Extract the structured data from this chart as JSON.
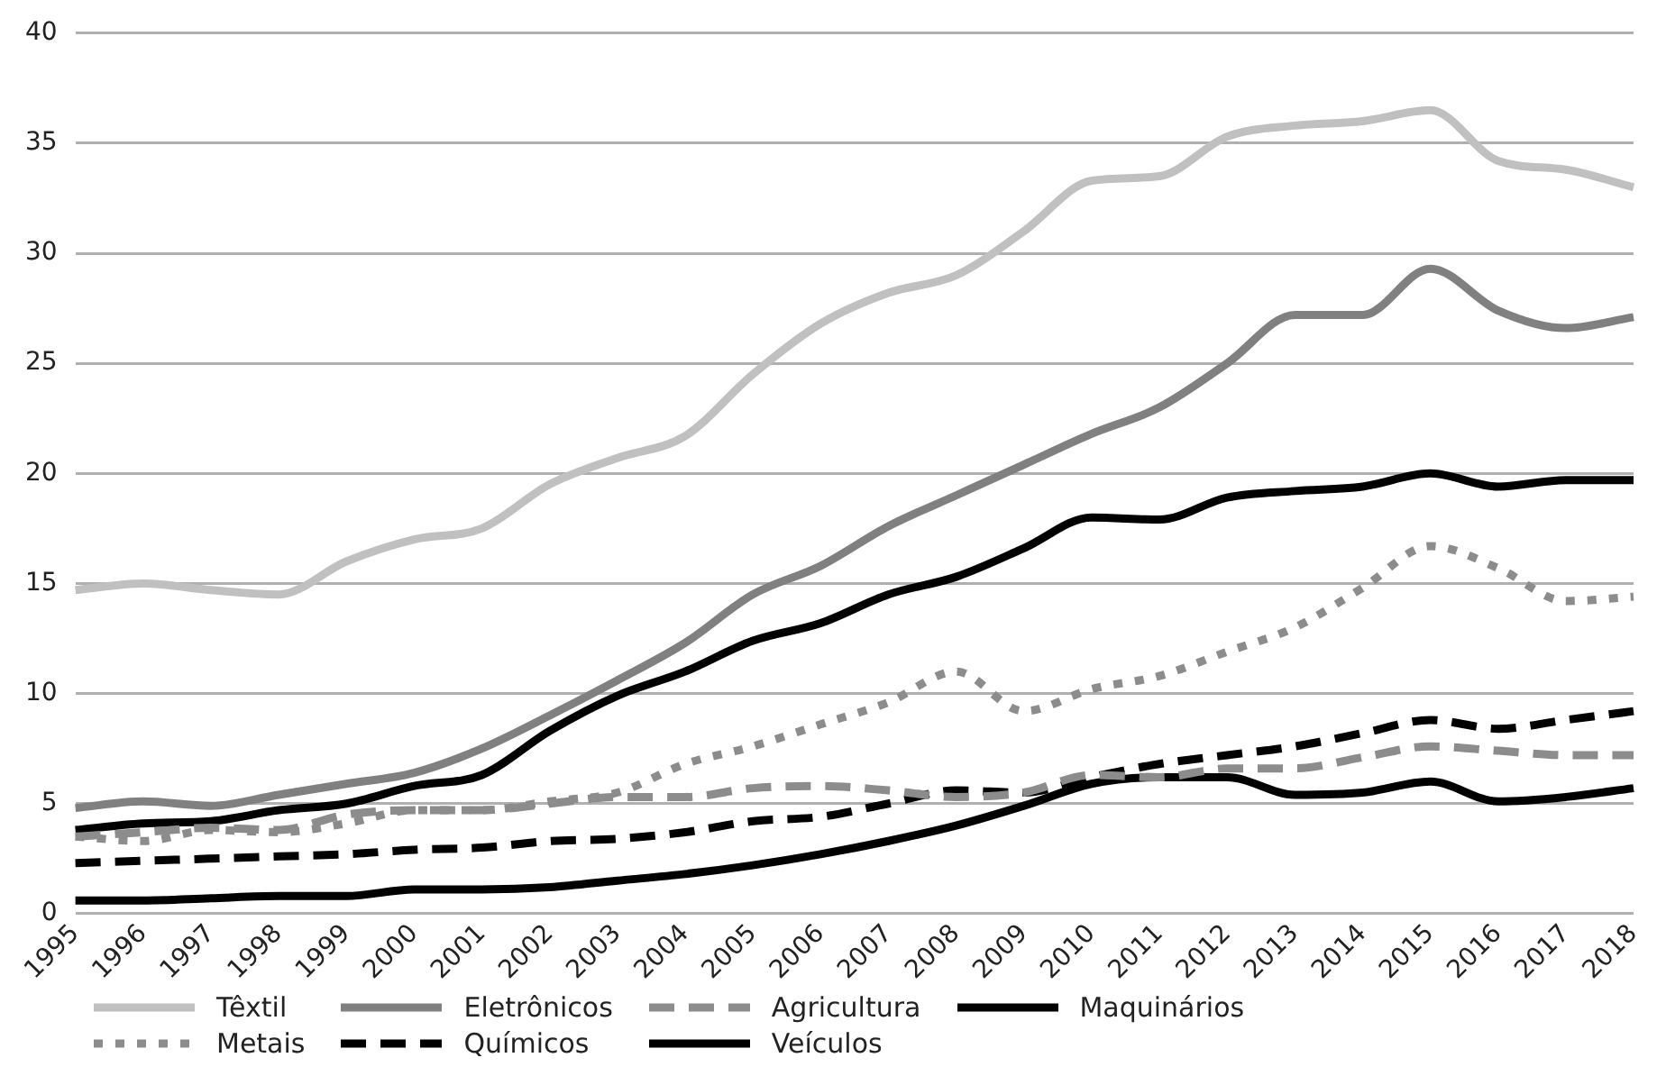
{
  "chart_data": {
    "type": "line",
    "categories": [
      "1995",
      "1996",
      "1997",
      "1998",
      "1999",
      "2000",
      "2001",
      "2002",
      "2003",
      "2004",
      "2005",
      "2006",
      "2007",
      "2008",
      "2009",
      "2010",
      "2011",
      "2012",
      "2013",
      "2014",
      "2015",
      "2016",
      "2017",
      "2018"
    ],
    "ylim": [
      0,
      40
    ],
    "yticks": [
      0,
      5,
      10,
      15,
      20,
      25,
      30,
      35,
      40
    ],
    "grid": "y",
    "legend": "bottom",
    "marker": "none",
    "series": [
      {
        "name": "Têxtil",
        "color": "#c0c0c0",
        "line_style": "solid",
        "values": [
          14.7,
          15.0,
          14.7,
          14.5,
          16,
          17,
          17.5,
          19.5,
          20.7,
          21.7,
          24.5,
          26.8,
          28.2,
          29,
          31,
          33.3,
          33.5,
          35.3,
          35.8,
          36,
          36.5,
          34.2,
          33.8,
          33
        ]
      },
      {
        "name": "Eletrônicos",
        "color": "#808080",
        "line_style": "solid",
        "values": [
          4.8,
          5.1,
          4.9,
          5.4,
          5.9,
          6.4,
          7.5,
          9,
          10.6,
          12.3,
          14.5,
          15.8,
          17.6,
          19,
          20.4,
          21.8,
          23,
          25,
          27.2,
          27.2,
          29.3,
          27.4,
          26.6,
          27.1
        ]
      },
      {
        "name": "Agricultura",
        "color": "#8c8c8c",
        "line_style": "dashed",
        "values": [
          3.5,
          3.7,
          3.9,
          3.8,
          4.5,
          4.7,
          4.7,
          5,
          5.3,
          5.3,
          5.7,
          5.8,
          5.6,
          5.3,
          5.5,
          6.3,
          6.2,
          6.6,
          6.6,
          7.1,
          7.6,
          7.4,
          7.2,
          7.2
        ]
      },
      {
        "name": "Maquinários",
        "color": "#000000",
        "line_style": "solid",
        "values": [
          3.8,
          4.1,
          4.2,
          4.7,
          5,
          5.8,
          6.3,
          8.3,
          9.9,
          11,
          12.4,
          13.2,
          14.5,
          15.3,
          16.6,
          18,
          17.9,
          18.9,
          19.2,
          19.4,
          20,
          19.4,
          19.7,
          19.7
        ]
      },
      {
        "name": "Metais",
        "color": "#8c8c8c",
        "line_style": "dotted",
        "values": [
          3.5,
          3.3,
          3.8,
          3.7,
          4.1,
          4.7,
          4.7,
          5.1,
          5.5,
          6.8,
          7.6,
          8.6,
          9.6,
          11,
          9.2,
          10.2,
          10.8,
          11.9,
          13,
          14.8,
          16.7,
          15.7,
          14.2,
          14.4
        ]
      },
      {
        "name": "Químicos",
        "color": "#000000",
        "line_style": "dashed",
        "values": [
          2.3,
          2.4,
          2.5,
          2.6,
          2.7,
          2.9,
          3,
          3.3,
          3.4,
          3.7,
          4.2,
          4.4,
          5.0,
          5.6,
          5.5,
          6.2,
          6.8,
          7.2,
          7.6,
          8.2,
          8.8,
          8.4,
          8.8,
          9.2
        ]
      },
      {
        "name": "Veículos",
        "color": "#000000",
        "line_style": "solid",
        "values": [
          0.6,
          0.6,
          0.7,
          0.8,
          0.8,
          1.1,
          1.1,
          1.2,
          1.5,
          1.8,
          2.2,
          2.7,
          3.3,
          4.0,
          4.9,
          5.9,
          6.2,
          6.2,
          5.4,
          5.5,
          6.0,
          5.1,
          5.3,
          5.7
        ]
      }
    ]
  }
}
